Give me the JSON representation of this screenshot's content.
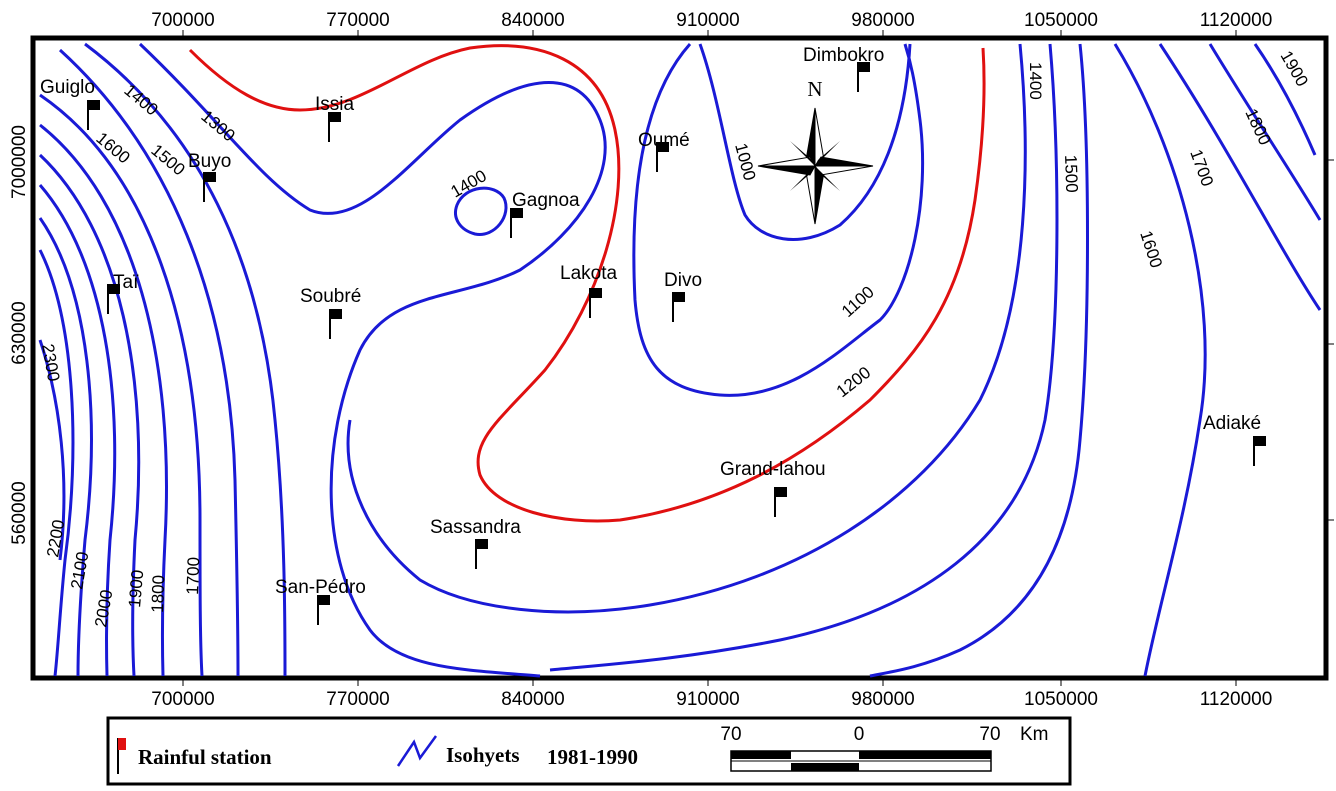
{
  "x_ticks": [
    "700000",
    "770000",
    "840000",
    "910000",
    "980000",
    "1050000",
    "1120000"
  ],
  "y_ticks": [
    "7000000",
    "630000",
    "560000"
  ],
  "stations": [
    {
      "name": "Guiglo"
    },
    {
      "name": "Issia"
    },
    {
      "name": "Buyo"
    },
    {
      "name": "Gagnoa"
    },
    {
      "name": "Oumé"
    },
    {
      "name": "Dimbokro"
    },
    {
      "name": "Taï"
    },
    {
      "name": "Soubré"
    },
    {
      "name": "Lakota"
    },
    {
      "name": "Divo"
    },
    {
      "name": "Adiaké"
    },
    {
      "name": "Grand-lahou"
    },
    {
      "name": "Sassandra"
    },
    {
      "name": "San-Pédro"
    }
  ],
  "isohyet_labels": [
    "1400",
    "1300",
    "1600",
    "1500",
    "1400",
    "1000",
    "1400",
    "1500",
    "1900",
    "1800",
    "1700",
    "1600",
    "1100",
    "1200",
    "2300",
    "2200",
    "2100",
    "2000",
    "1900",
    "1800",
    "1700"
  ],
  "north_label": "N",
  "legend": {
    "station_label": "Rainful station",
    "isohyet_label": "Isohyets",
    "isohyet_period": "1981-1990"
  },
  "scale": {
    "left": "70",
    "center": "0",
    "right": "70",
    "unit": "Km"
  },
  "colors": {
    "isohyet": "#1a1ad6",
    "isohyet_highlight": "#e01010",
    "frame": "#000000"
  }
}
